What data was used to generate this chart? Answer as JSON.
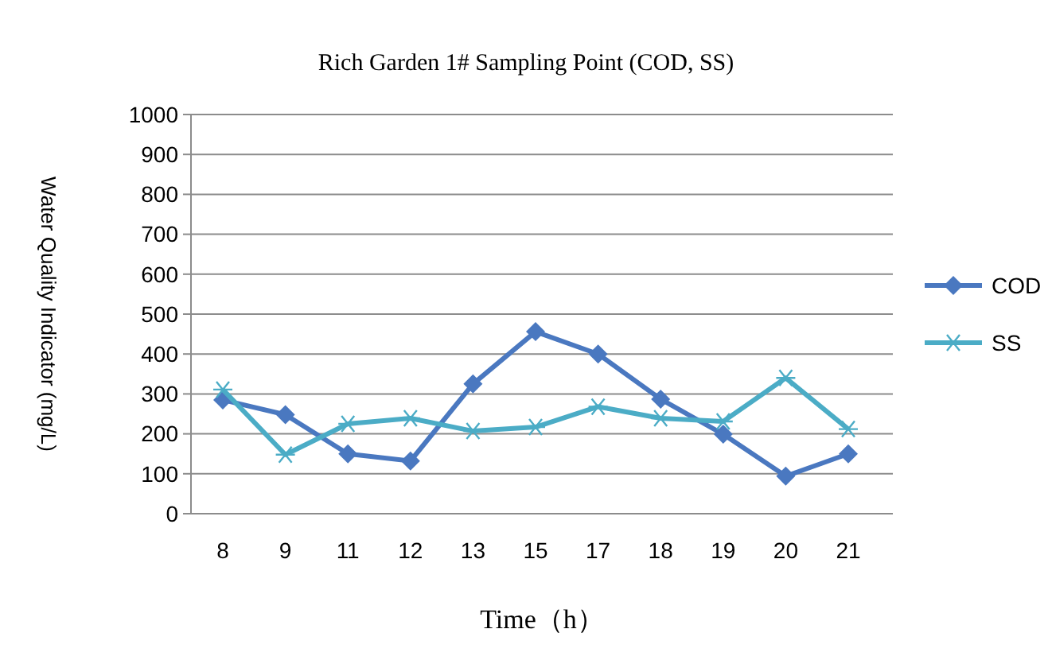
{
  "chart_data": {
    "type": "line",
    "title": "Rich Garden 1# Sampling Point (COD, SS)",
    "xlabel": "Time（h）",
    "ylabel": "Water Quality Indicator (mg/L)",
    "categories": [
      "8",
      "9",
      "11",
      "12",
      "13",
      "15",
      "17",
      "18",
      "19",
      "20",
      "21"
    ],
    "series": [
      {
        "name": "COD",
        "color": "#4a78c0",
        "marker": "diamond",
        "values": [
          285,
          248,
          150,
          132,
          325,
          456,
          400,
          287,
          199,
          94,
          150
        ]
      },
      {
        "name": "SS",
        "color": "#4bacc6",
        "marker": "cross",
        "values": [
          311,
          148,
          225,
          239,
          207,
          217,
          268,
          239,
          231,
          340,
          212
        ]
      }
    ],
    "ylim": [
      0,
      1000
    ],
    "yticks": [
      0,
      100,
      200,
      300,
      400,
      500,
      600,
      700,
      800,
      900,
      1000
    ],
    "grid": "y",
    "legend": "right"
  }
}
